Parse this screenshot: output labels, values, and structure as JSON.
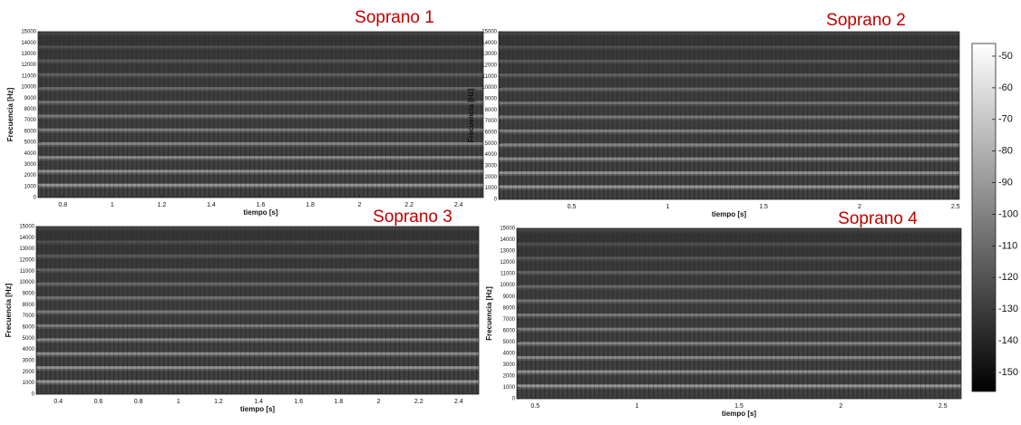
{
  "chart_data": [
    {
      "type": "spectrogram",
      "title": "Soprano 1",
      "xlabel": "tiempo [s]",
      "ylabel": "Frecuencia [Hz]",
      "xlim": [
        0.7,
        2.5
      ],
      "xticks": [
        0.8,
        1,
        1.2,
        1.4,
        1.6,
        1.8,
        2,
        2.2,
        2.4
      ],
      "ylim": [
        0,
        15000
      ],
      "yticks": [
        0,
        1000,
        2000,
        3000,
        4000,
        5000,
        6000,
        7000,
        8000,
        9000,
        10000,
        11000,
        12000,
        13000,
        14000,
        15000
      ]
    },
    {
      "type": "spectrogram",
      "title": "Soprano 2",
      "xlabel": "tiempo [s]",
      "ylabel": "Frecuencia [Hz]",
      "xlim": [
        0.12,
        2.52
      ],
      "xticks": [
        0.5,
        1,
        1.5,
        2,
        2.5
      ],
      "ylim": [
        0,
        15000
      ],
      "yticks": [
        0,
        1000,
        2000,
        3000,
        4000,
        5000,
        6000,
        7000,
        8000,
        9000,
        10000,
        11000,
        12000,
        13000,
        14000,
        15000
      ]
    },
    {
      "type": "spectrogram",
      "title": "Soprano 3",
      "xlabel": "tiempo [s]",
      "ylabel": "Frecuencia [Hz]",
      "xlim": [
        0.29,
        2.5
      ],
      "xticks": [
        0.4,
        0.6,
        0.8,
        1,
        1.2,
        1.4,
        1.6,
        1.8,
        2,
        2.2,
        2.4
      ],
      "ylim": [
        0,
        15000
      ],
      "yticks": [
        0,
        1000,
        2000,
        3000,
        4000,
        5000,
        6000,
        7000,
        8000,
        9000,
        10000,
        11000,
        12000,
        13000,
        14000,
        15000
      ]
    },
    {
      "type": "spectrogram",
      "title": "Soprano 4",
      "xlabel": "tiempo [s]",
      "ylabel": "Frecuencia [Hz]",
      "xlim": [
        0.41,
        2.59
      ],
      "xticks": [
        0.5,
        1,
        1.5,
        2,
        2.5
      ],
      "ylim": [
        0,
        15000
      ],
      "yticks": [
        0,
        1000,
        2000,
        3000,
        4000,
        5000,
        6000,
        7000,
        8000,
        9000,
        10000,
        11000,
        12000,
        13000,
        14000,
        15000
      ]
    },
    {
      "type": "colorbar",
      "ylim": [
        -156,
        -46
      ],
      "yticks": [
        -50,
        -60,
        -70,
        -80,
        -90,
        -100,
        -110,
        -120,
        -130,
        -140,
        -150
      ]
    }
  ]
}
